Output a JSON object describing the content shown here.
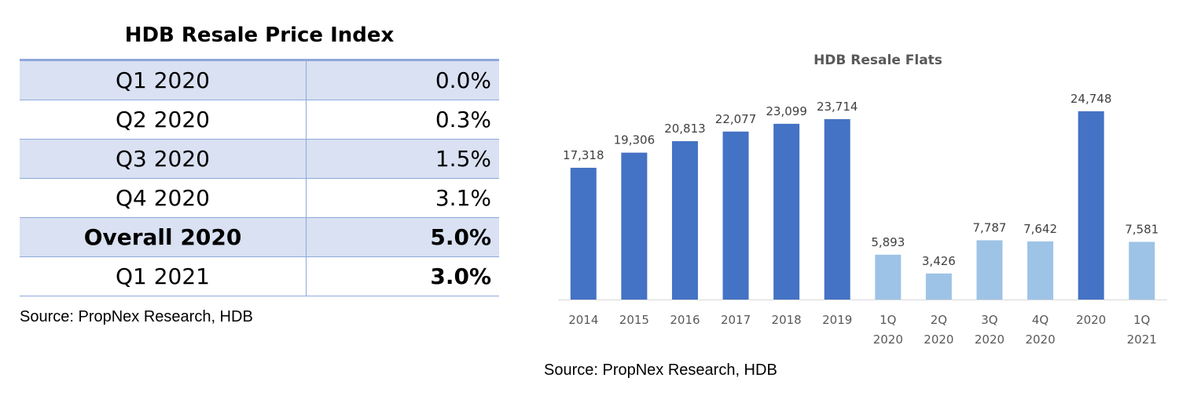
{
  "table": {
    "title": "HDB Resale Price Index",
    "rows": [
      {
        "label": "Q1 2020",
        "value": "0.0%",
        "label_bold": false,
        "value_bold": false
      },
      {
        "label": "Q2 2020",
        "value": "0.3%",
        "label_bold": false,
        "value_bold": false
      },
      {
        "label": "Q3 2020",
        "value": "1.5%",
        "label_bold": false,
        "value_bold": false
      },
      {
        "label": "Q4 2020",
        "value": "3.1%",
        "label_bold": false,
        "value_bold": false
      },
      {
        "label": "Overall 2020",
        "value": "5.0%",
        "label_bold": true,
        "value_bold": true
      },
      {
        "label": "Q1 2021",
        "value": "3.0%",
        "label_bold": false,
        "value_bold": true
      }
    ],
    "source": "Source: PropNex Research, HDB"
  },
  "chart_data": {
    "type": "bar",
    "title": "HDB Resale Flats",
    "categories": [
      "2014",
      "2015",
      "2016",
      "2017",
      "2018",
      "2019",
      "1Q 2020",
      "2Q 2020",
      "3Q 2020",
      "4Q 2020",
      "2020",
      "1Q 2021"
    ],
    "category_lines": [
      [
        "2014"
      ],
      [
        "2015"
      ],
      [
        "2016"
      ],
      [
        "2017"
      ],
      [
        "2018"
      ],
      [
        "2019"
      ],
      [
        "1Q",
        "2020"
      ],
      [
        "2Q",
        "2020"
      ],
      [
        "3Q",
        "2020"
      ],
      [
        "4Q",
        "2020"
      ],
      [
        "2020"
      ],
      [
        "1Q",
        "2021"
      ]
    ],
    "values": [
      17318,
      19306,
      20813,
      22077,
      23099,
      23714,
      5893,
      3426,
      7787,
      7642,
      24748,
      7581
    ],
    "value_labels": [
      "17,318",
      "19,306",
      "20,813",
      "22,077",
      "23,099",
      "23,714",
      "5,893",
      "3,426",
      "7,787",
      "7,642",
      "24,748",
      "7,581"
    ],
    "bar_colors": [
      "#4472c4",
      "#4472c4",
      "#4472c4",
      "#4472c4",
      "#4472c4",
      "#4472c4",
      "#9dc3e6",
      "#9dc3e6",
      "#9dc3e6",
      "#9dc3e6",
      "#4472c4",
      "#9dc3e6"
    ],
    "ylim": [
      0,
      27000
    ],
    "grid": false,
    "legend": "none",
    "source": "Source: PropNex Research, HDB"
  }
}
